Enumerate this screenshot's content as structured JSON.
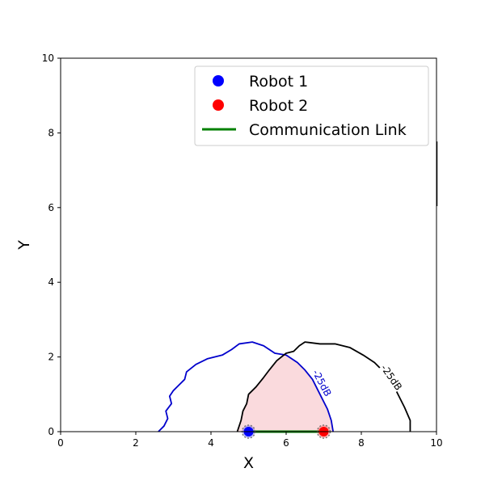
{
  "chart_data": {
    "type": "scatter",
    "title": "",
    "xlabel": "X",
    "ylabel": "Y",
    "xlim": [
      0,
      10
    ],
    "ylim": [
      0,
      10
    ],
    "xticks": [
      "0",
      "2",
      "4",
      "6",
      "8",
      "10"
    ],
    "yticks": [
      "0",
      "2",
      "4",
      "6",
      "8",
      "10"
    ],
    "grid": false,
    "legend_position": "top-right",
    "series": [
      {
        "name": "Robot 1",
        "kind": "point",
        "color": "#0000ff",
        "x": [
          5.0
        ],
        "y": [
          0.0
        ]
      },
      {
        "name": "Robot 2",
        "kind": "point",
        "color": "#ff0000",
        "x": [
          7.0
        ],
        "y": [
          0.0
        ]
      },
      {
        "name": "Communication Link",
        "kind": "line",
        "color": "#008000",
        "x": [
          5.0,
          7.0
        ],
        "y": [
          0.0,
          0.0
        ]
      }
    ],
    "contours": [
      {
        "label": "-25dB",
        "color": "#0000cc",
        "points": [
          [
            2.6,
            0.0
          ],
          [
            2.75,
            0.15
          ],
          [
            2.85,
            0.35
          ],
          [
            2.8,
            0.55
          ],
          [
            2.95,
            0.75
          ],
          [
            2.9,
            0.95
          ],
          [
            3.0,
            1.1
          ],
          [
            3.15,
            1.25
          ],
          [
            3.3,
            1.4
          ],
          [
            3.35,
            1.6
          ],
          [
            3.6,
            1.8
          ],
          [
            3.9,
            1.95
          ],
          [
            4.3,
            2.05
          ],
          [
            4.55,
            2.2
          ],
          [
            4.75,
            2.35
          ],
          [
            5.1,
            2.4
          ],
          [
            5.4,
            2.3
          ],
          [
            5.7,
            2.1
          ],
          [
            6.0,
            2.05
          ],
          [
            6.3,
            1.85
          ],
          [
            6.5,
            1.65
          ],
          [
            6.7,
            1.4
          ],
          [
            6.8,
            1.2
          ],
          [
            6.9,
            1.0
          ],
          [
            7.1,
            0.6
          ],
          [
            7.2,
            0.3
          ],
          [
            7.25,
            0.0
          ]
        ],
        "label_at": [
          6.95,
          1.3
        ],
        "label_angle": 62
      },
      {
        "label": "-25dB",
        "color": "#000000",
        "points": [
          [
            4.7,
            0.0
          ],
          [
            4.8,
            0.3
          ],
          [
            4.85,
            0.55
          ],
          [
            4.95,
            0.75
          ],
          [
            5.0,
            1.0
          ],
          [
            5.2,
            1.2
          ],
          [
            5.4,
            1.45
          ],
          [
            5.55,
            1.65
          ],
          [
            5.75,
            1.9
          ],
          [
            6.0,
            2.1
          ],
          [
            6.2,
            2.15
          ],
          [
            6.35,
            2.3
          ],
          [
            6.5,
            2.4
          ],
          [
            6.9,
            2.35
          ],
          [
            7.3,
            2.35
          ],
          [
            7.7,
            2.25
          ],
          [
            8.05,
            2.05
          ],
          [
            8.35,
            1.85
          ],
          [
            8.6,
            1.6
          ],
          [
            8.8,
            1.35
          ],
          [
            8.95,
            1.05
          ],
          [
            9.15,
            0.65
          ],
          [
            9.3,
            0.3
          ],
          [
            9.3,
            0.0
          ]
        ],
        "label_at": [
          8.8,
          1.45
        ],
        "label_angle": 55
      }
    ],
    "overlap_region_color": "#fadadd"
  }
}
